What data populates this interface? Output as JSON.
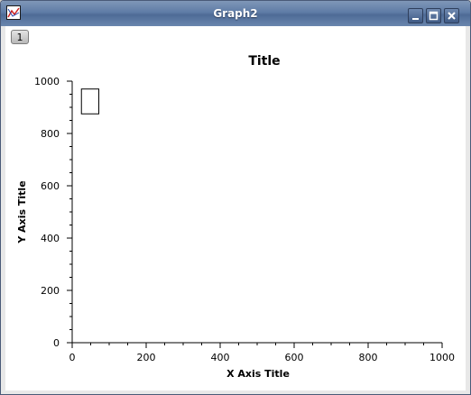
{
  "window": {
    "title": "Graph2",
    "icon": "graph-app-icon",
    "controls": [
      "minimize-icon",
      "maximize-icon",
      "close-icon"
    ]
  },
  "layer_tab": {
    "label": "1"
  },
  "chart_data": {
    "type": "scatter",
    "title": "Title",
    "xlabel": "X Axis Title",
    "ylabel": "Y Axis Title",
    "xlim": [
      0,
      1000
    ],
    "ylim": [
      0,
      1000
    ],
    "xticks": [
      0,
      200,
      400,
      600,
      800,
      1000
    ],
    "yticks": [
      0,
      200,
      400,
      600,
      800,
      1000
    ],
    "xtick_labels": [
      "0",
      "200",
      "400",
      "600",
      "800",
      "1000"
    ],
    "ytick_labels": [
      "0",
      "200",
      "400",
      "600",
      "800",
      "1000"
    ],
    "x_minor_step": 50,
    "y_minor_step": 50,
    "grid": false,
    "series": [],
    "legend": {
      "placement": "top-left",
      "x_range": [
        25,
        72
      ],
      "y_range": [
        875,
        970
      ],
      "entries": []
    }
  }
}
